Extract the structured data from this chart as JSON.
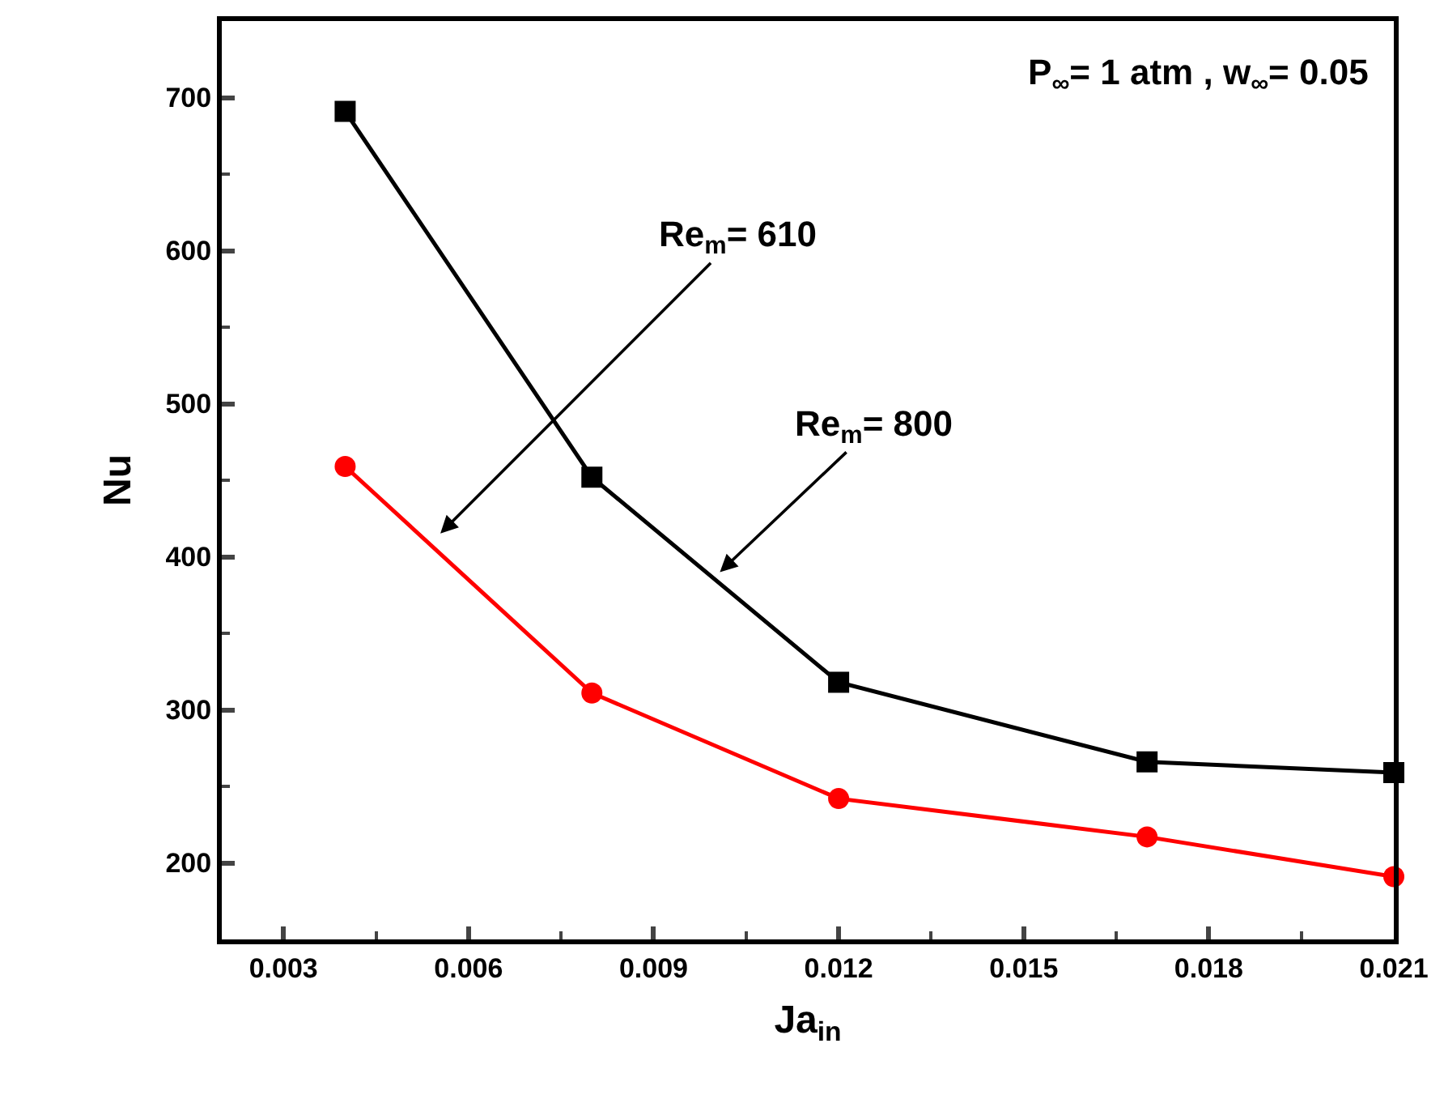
{
  "chart_data": {
    "type": "line",
    "xlabel": "Ja$_{in}$",
    "ylabel": "Nu",
    "x": [
      0.004,
      0.008,
      0.012,
      0.017,
      0.021
    ],
    "series": [
      {
        "color": "#000000",
        "marker": "square",
        "values": [
          691,
          452,
          318,
          266,
          259
        ]
      },
      {
        "color": "#ff0000",
        "marker": "circle",
        "values": [
          459,
          311,
          242,
          217,
          191
        ]
      }
    ],
    "xlim": [
      0.002,
      0.021
    ],
    "xticks": [
      {
        "value": 0.003,
        "label": "0.003"
      },
      {
        "value": 0.006,
        "label": "0.006"
      },
      {
        "value": 0.009,
        "label": "0.009"
      },
      {
        "value": 0.012,
        "label": "0.012"
      },
      {
        "value": 0.015,
        "label": "0.015"
      },
      {
        "value": 0.018,
        "label": "0.018"
      },
      {
        "value": 0.021,
        "label": "0.021"
      }
    ],
    "ylim": [
      150,
      750
    ],
    "yticks": [
      200,
      300,
      400,
      500,
      600,
      700
    ],
    "annotations": [
      "P$_{∞}$= 1 atm , w$_{∞}$= 0.05",
      "Re$_{m}$= 610",
      "Re$_{m}$= 800"
    ],
    "line_style": "solid"
  }
}
